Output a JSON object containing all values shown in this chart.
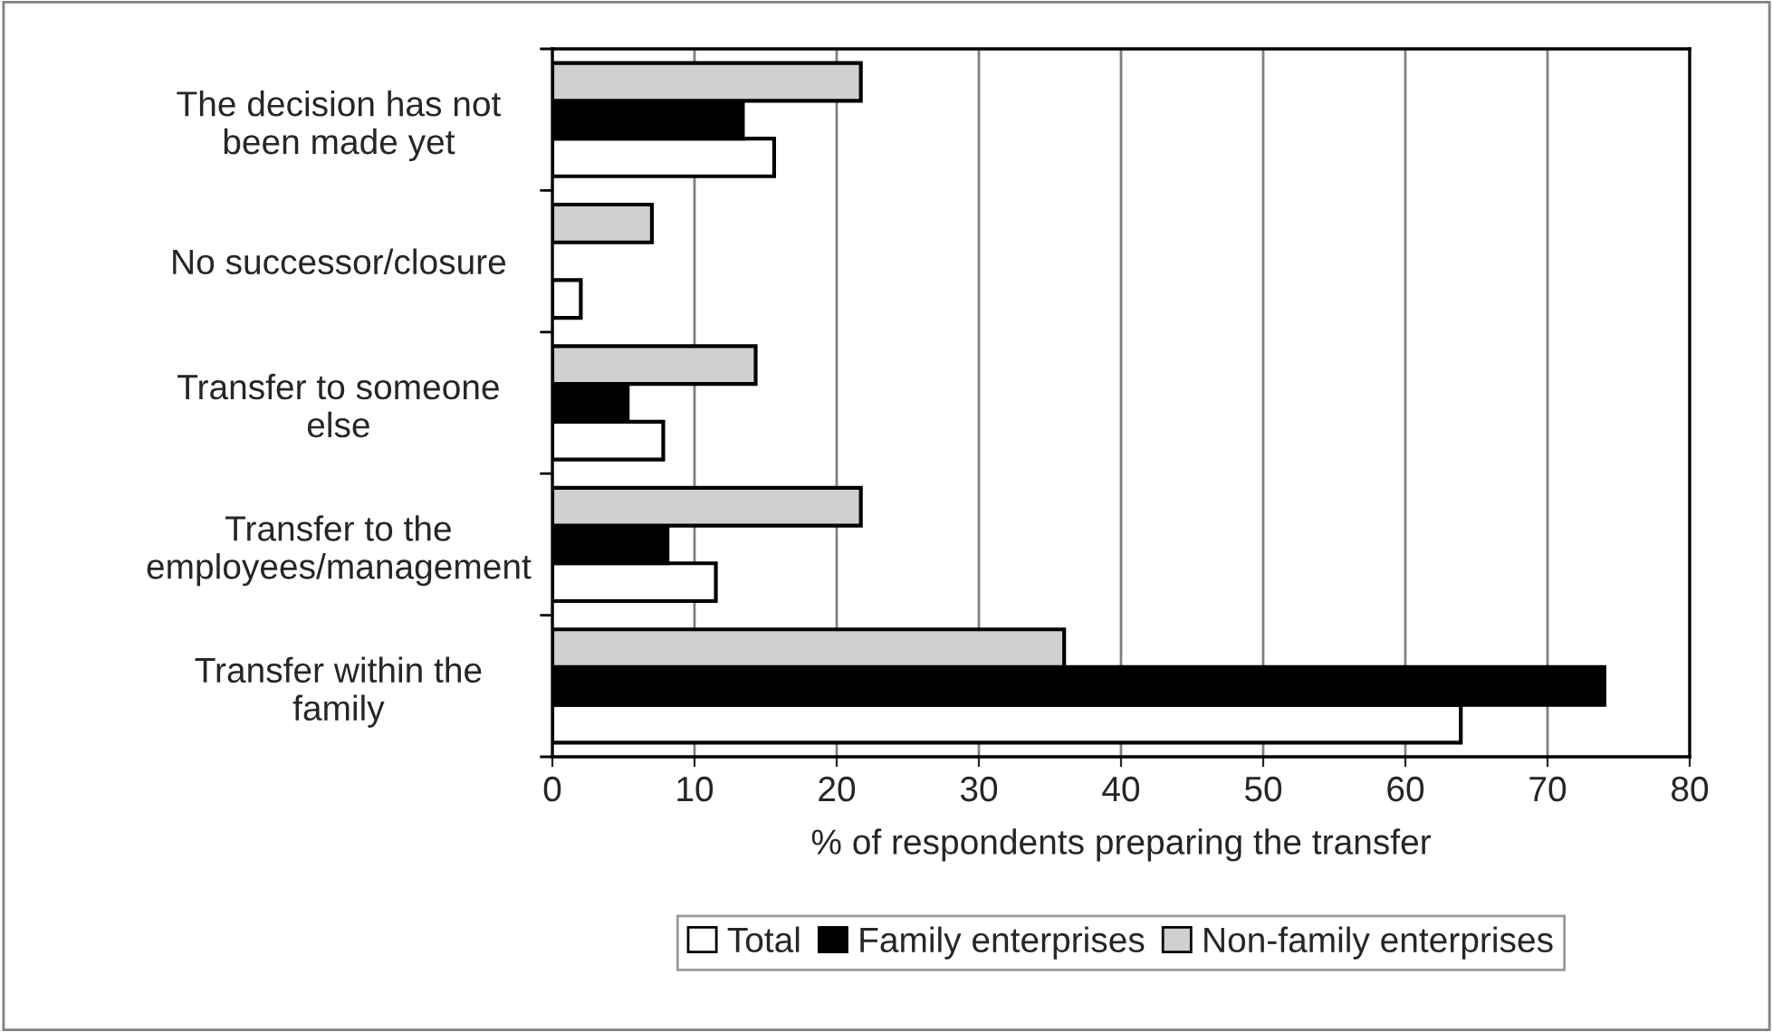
{
  "chart_data": {
    "type": "bar",
    "orientation": "horizontal",
    "xlabel": "% of respondents preparing the transfer",
    "categories": [
      "The decision has not\nbeen made yet",
      "No successor/closure",
      "Transfer to someone\nelse",
      "Transfer to the\nemployees/management",
      "Transfer within the\nfamily"
    ],
    "series": [
      {
        "name": "Total",
        "color": "#ffffff",
        "values": [
          15.6,
          2.0,
          7.8,
          11.5,
          63.9
        ]
      },
      {
        "name": "Family enterprises",
        "color": "#000000",
        "values": [
          13.4,
          null,
          5.3,
          8.1,
          74.0
        ]
      },
      {
        "name": "Non-family enterprises",
        "color": "#d0d0d0",
        "values": [
          21.7,
          7.0,
          14.3,
          21.7,
          36.0
        ]
      }
    ],
    "xlim": [
      0,
      80
    ],
    "xticks": [
      0,
      10,
      20,
      30,
      40,
      50,
      60,
      70,
      80
    ],
    "grid": "x",
    "legend": "bottom"
  }
}
